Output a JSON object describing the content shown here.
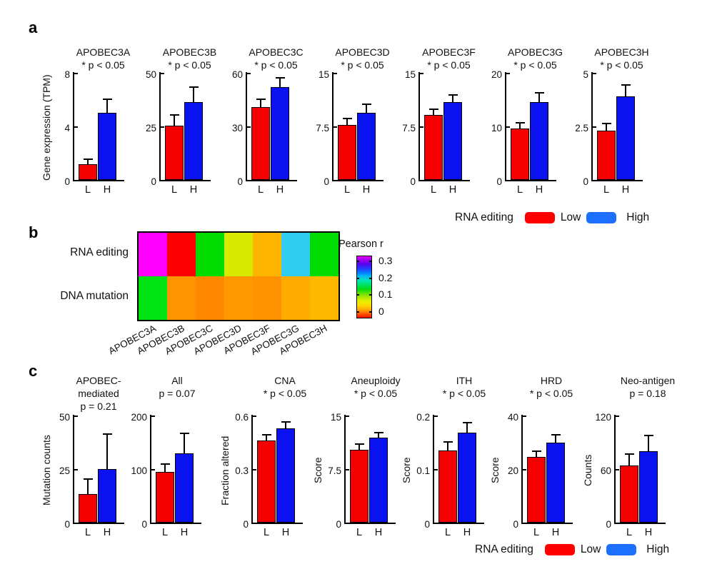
{
  "figure": {
    "panel_labels": {
      "a": "a",
      "b": "b",
      "c": "c"
    }
  },
  "colors": {
    "bar_low": "#f40000",
    "bar_high": "#0a12f0",
    "legend_low": "#ff0000",
    "legend_high": "#1d6fff",
    "axis": "#000000"
  },
  "legend": {
    "title": "RNA editing",
    "low_label": "Low",
    "high_label": "High"
  },
  "chart_data": [
    {
      "panel": "a",
      "type": "bar",
      "title": "APOBEC3A",
      "p_label": "* p < 0.05",
      "ylabel": "Gene expression (TPM)",
      "ylim": [
        0,
        8
      ],
      "yticks": [
        "0",
        "4",
        "8"
      ],
      "categories": [
        "L",
        "H"
      ],
      "values": [
        1.2,
        5.0
      ],
      "errors": [
        0.3,
        1.0
      ]
    },
    {
      "panel": "a",
      "type": "bar",
      "title": "APOBEC3B",
      "p_label": "* p < 0.05",
      "ylim": [
        0,
        50
      ],
      "yticks": [
        "0",
        "25",
        "50"
      ],
      "categories": [
        "L",
        "H"
      ],
      "values": [
        25.5,
        36.5
      ],
      "errors": [
        4.5,
        6.5
      ]
    },
    {
      "panel": "a",
      "type": "bar",
      "title": "APOBEC3C",
      "p_label": "* p < 0.05",
      "ylim": [
        0,
        60
      ],
      "yticks": [
        "0",
        "30",
        "60"
      ],
      "categories": [
        "L",
        "H"
      ],
      "values": [
        41,
        52
      ],
      "errors": [
        4,
        5
      ]
    },
    {
      "panel": "a",
      "type": "bar",
      "title": "APOBEC3D",
      "p_label": "* p < 0.05",
      "ylim": [
        0,
        15
      ],
      "yticks": [
        "0",
        "7.5",
        "15"
      ],
      "categories": [
        "L",
        "H"
      ],
      "values": [
        7.7,
        9.4
      ],
      "errors": [
        0.8,
        1.1
      ]
    },
    {
      "panel": "a",
      "type": "bar",
      "title": "APOBEC3F",
      "p_label": "* p < 0.05",
      "ylim": [
        0,
        15
      ],
      "yticks": [
        "0",
        "7.5",
        "15"
      ],
      "categories": [
        "L",
        "H"
      ],
      "values": [
        9.1,
        10.9
      ],
      "errors": [
        0.7,
        0.9
      ]
    },
    {
      "panel": "a",
      "type": "bar",
      "title": "APOBEC3G",
      "p_label": "* p < 0.05",
      "ylim": [
        0,
        20
      ],
      "yticks": [
        "0",
        "10",
        "20"
      ],
      "categories": [
        "L",
        "H"
      ],
      "values": [
        9.6,
        14.5
      ],
      "errors": [
        0.9,
        1.6
      ]
    },
    {
      "panel": "a",
      "type": "bar",
      "title": "APOBEC3H",
      "p_label": "* p < 0.05",
      "ylim": [
        0,
        5
      ],
      "yticks": [
        "0",
        "2.5",
        "5"
      ],
      "categories": [
        "L",
        "H"
      ],
      "values": [
        2.3,
        3.9
      ],
      "errors": [
        0.3,
        0.5
      ]
    },
    {
      "panel": "b",
      "type": "heatmap",
      "rows": [
        "RNA editing",
        "DNA mutation"
      ],
      "columns": [
        "APOBEC3A",
        "APOBEC3B",
        "APOBEC3C",
        "APOBEC3D",
        "APOBEC3F",
        "APOBEC3G",
        "APOBEC3H"
      ],
      "values": [
        [
          0.3,
          0.01,
          0.12,
          0.08,
          0.05,
          0.19,
          0.12
        ],
        [
          0.13,
          0.04,
          0.03,
          0.04,
          0.04,
          0.05,
          0.06
        ]
      ],
      "cell_colors": [
        [
          "#ff00ff",
          "#fa0000",
          "#00dc00",
          "#d8ea00",
          "#ffb400",
          "#2fcef0",
          "#00dc00"
        ],
        [
          "#00e414",
          "#ff9400",
          "#ff8800",
          "#ff9800",
          "#ff9200",
          "#ffac00",
          "#ffb800"
        ]
      ],
      "colorbar": {
        "title": "Pearson r",
        "tick_labels": [
          "0.3",
          "0.2",
          "0.1",
          "0"
        ],
        "range": [
          0,
          0.3
        ]
      }
    },
    {
      "panel": "c",
      "type": "bar",
      "title": "APOBEC-mediated",
      "title_lines": [
        "APOBEC-",
        "mediated"
      ],
      "p_label": "p = 0.21",
      "ylabel": "Mutation counts",
      "ylim": [
        0,
        50
      ],
      "yticks": [
        "0",
        "25",
        "50"
      ],
      "categories": [
        "L",
        "H"
      ],
      "values": [
        13.5,
        25
      ],
      "errors": [
        6.5,
        16
      ]
    },
    {
      "panel": "c",
      "type": "bar",
      "title": "All",
      "p_label": "p = 0.07",
      "ylim": [
        0,
        200
      ],
      "yticks": [
        "0",
        "100",
        "200"
      ],
      "categories": [
        "L",
        "H"
      ],
      "values": [
        95,
        130
      ],
      "errors": [
        13,
        35
      ]
    },
    {
      "panel": "c",
      "type": "bar",
      "title": "CNA",
      "p_label": "* p < 0.05",
      "ylabel": "Fraction altered",
      "ylim": [
        0,
        0.6
      ],
      "yticks": [
        "0",
        "0.3",
        "0.6"
      ],
      "categories": [
        "L",
        "H"
      ],
      "values": [
        0.46,
        0.53
      ],
      "errors": [
        0.03,
        0.03
      ]
    },
    {
      "panel": "c",
      "type": "bar",
      "title": "Aneuploidy",
      "p_label": "* p < 0.05",
      "ylabel": "Score",
      "ylim": [
        0,
        15
      ],
      "yticks": [
        "0",
        "7.5",
        "15"
      ],
      "categories": [
        "L",
        "H"
      ],
      "values": [
        10.2,
        11.9
      ],
      "errors": [
        0.7,
        0.6
      ]
    },
    {
      "panel": "c",
      "type": "bar",
      "title": "ITH",
      "p_label": "* p < 0.05",
      "ylabel": "Score",
      "ylim": [
        0,
        0.2
      ],
      "yticks": [
        "0",
        "0.1",
        "0.2"
      ],
      "categories": [
        "L",
        "H"
      ],
      "values": [
        0.135,
        0.168
      ],
      "errors": [
        0.015,
        0.018
      ]
    },
    {
      "panel": "c",
      "type": "bar",
      "title": "HRD",
      "p_label": "* p < 0.05",
      "ylabel": "Score",
      "ylim": [
        0,
        40
      ],
      "yticks": [
        "0",
        "20",
        "40"
      ],
      "categories": [
        "L",
        "H"
      ],
      "values": [
        24.5,
        30
      ],
      "errors": [
        2,
        2.5
      ]
    },
    {
      "panel": "c",
      "type": "bar",
      "title": "Neo-antigen",
      "p_label": "p = 0.18",
      "ylabel": "Counts",
      "ylim": [
        0,
        120
      ],
      "yticks": [
        "0",
        "60",
        "120"
      ],
      "categories": [
        "L",
        "H"
      ],
      "values": [
        64,
        80
      ],
      "errors": [
        12,
        17
      ]
    }
  ]
}
